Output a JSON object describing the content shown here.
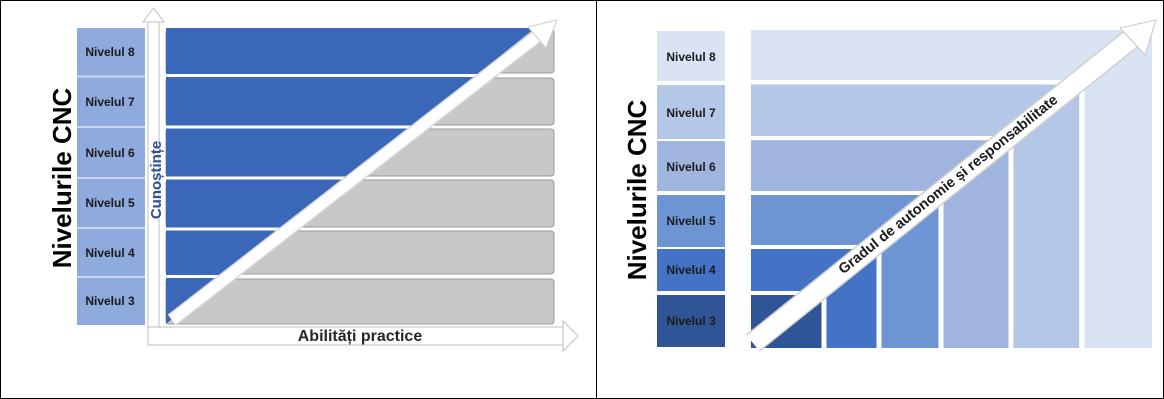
{
  "left_panel": {
    "side_title": "Nivelurile CNC",
    "vertical_axis_label": "Cunoștințe",
    "horizontal_axis_label": "Abilități practice",
    "levels": [
      "Nivelul 8",
      "Nivelul 7",
      "Nivelul 6",
      "Nivelul 5",
      "Nivelul 4",
      "Nivelul 3"
    ],
    "colors": {
      "label_box": "#8faadc",
      "label_border": "#c9d6ee",
      "band_blue": "#3a67b7",
      "band_grey": "#c8c8c8",
      "arrow": "#ffffff"
    }
  },
  "right_panel": {
    "side_title": "Nivelurile CNC",
    "diagonal_label": "Gradul de autonomie și responsabilitate",
    "levels": [
      "Nivelul 8",
      "Nivelul 7",
      "Nivelul 6",
      "Nivelul 5",
      "Nivelul 4",
      "Nivelul 3"
    ],
    "colors": {
      "level_8": "#dae3f3",
      "level_7": "#b4c7e7",
      "level_6": "#9fb5e0",
      "level_5": "#6e95d3",
      "level_4": "#4472c4",
      "level_3": "#2f5597"
    }
  }
}
